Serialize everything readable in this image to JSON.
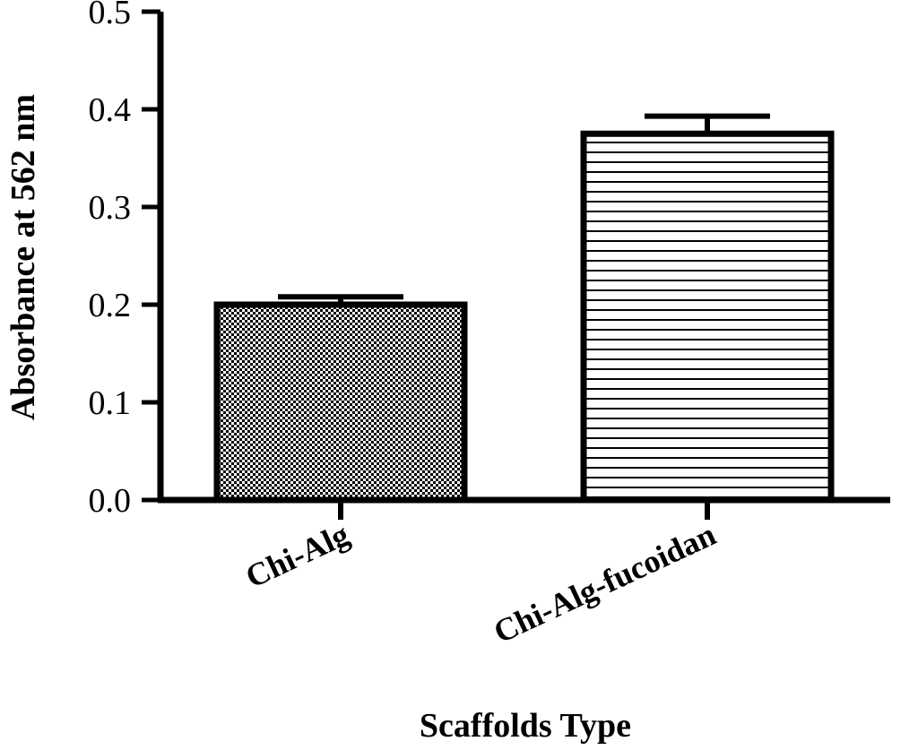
{
  "chart_data": {
    "type": "bar",
    "categories": [
      "Chi-Alg",
      "Chi-Alg-fucoidan"
    ],
    "series": [
      {
        "values": [
          0.2,
          0.375
        ],
        "errors": [
          0.008,
          0.018
        ]
      }
    ],
    "xlabel": "Scaffolds Type",
    "ylabel": "Absorbance at 562 nm",
    "ylim": [
      0,
      0.5
    ],
    "yticks": [
      0.0,
      0.1,
      0.2,
      0.3,
      0.4,
      0.5
    ],
    "ytick_labels": [
      "0.0",
      "0.1",
      "0.2",
      "0.3",
      "0.4",
      "0.5"
    ],
    "bar_patterns": [
      "checkered",
      "horizontal-stripes"
    ],
    "grid": false,
    "legend": "none",
    "colors": {
      "line": "#000000",
      "background": "#ffffff"
    }
  }
}
